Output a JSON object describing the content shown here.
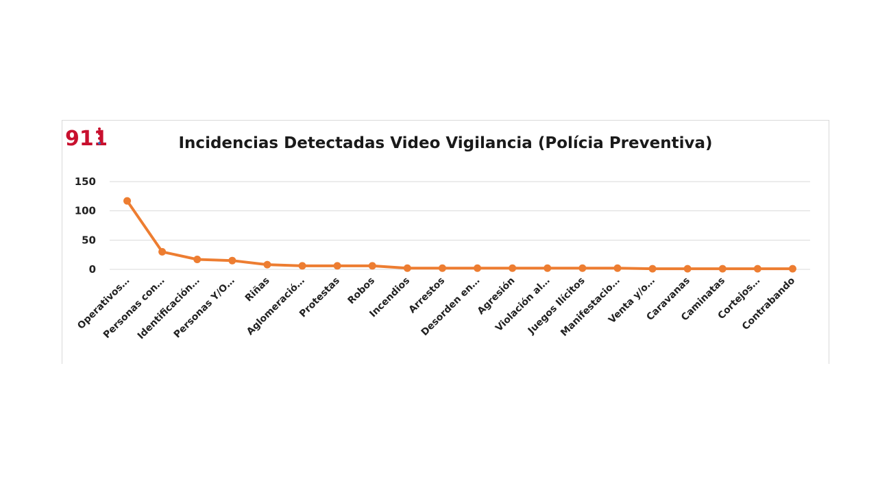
{
  "logo": {
    "text": "911"
  },
  "chart_data": {
    "type": "line",
    "title": "Incidencias Detectadas Video Vigilancia (Polícia Preventiva)",
    "xlabel": "",
    "ylabel": "",
    "ylim": [
      0,
      150
    ],
    "yticks": [
      0,
      50,
      100,
      150
    ],
    "grid": true,
    "categories": [
      "Operativos…",
      "Personas con…",
      "Identificación…",
      "Personas Y/O…",
      "Riñas",
      "Aglomeració…",
      "Protestas",
      "Robos",
      "Incendios",
      "Arrestos",
      "Desorden en…",
      "Agresión",
      "Violación al…",
      "Juegos Ilícitos",
      "Manifestacio…",
      "Venta y/o…",
      "Caravanas",
      "Caminatas",
      "Cortejos…",
      "Contrabando"
    ],
    "series": [
      {
        "values": [
          117,
          30,
          17,
          15,
          8,
          6,
          6,
          6,
          2,
          2,
          2,
          2,
          2,
          2,
          2,
          1,
          1,
          1,
          1,
          1
        ],
        "color": "#ed7d31"
      }
    ]
  }
}
